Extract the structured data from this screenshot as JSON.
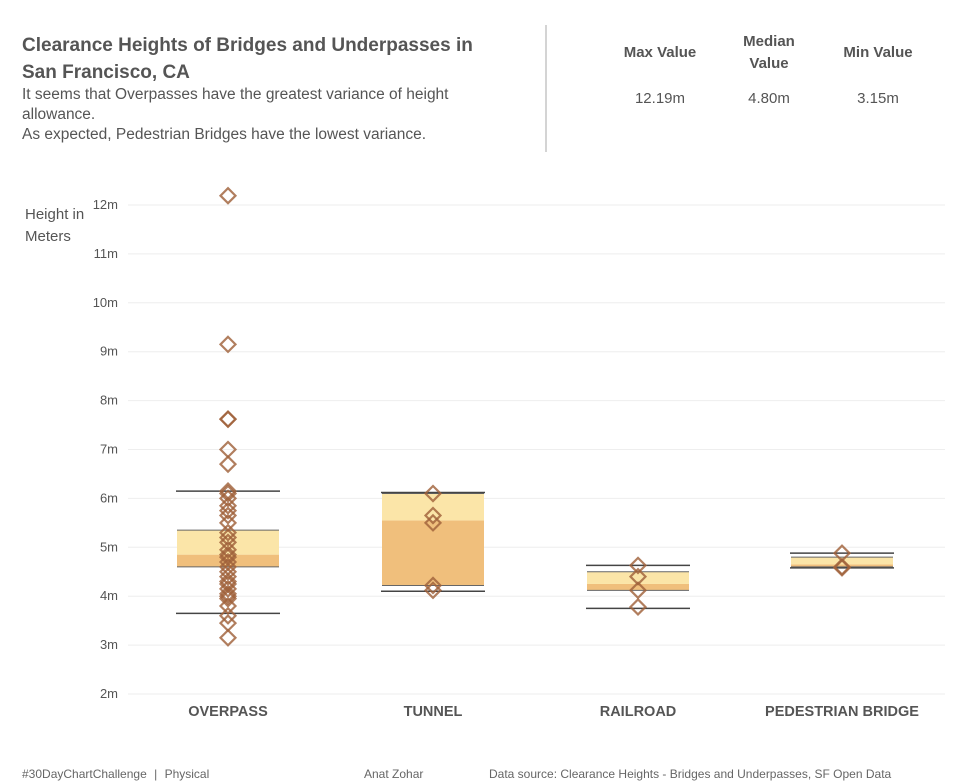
{
  "header": {
    "title": "Clearance Heights of Bridges and Underpasses in San Francisco, CA",
    "subtitle_lines": [
      "It seems that Overpasses have the greatest variance of height allowance.",
      "As expected, Pedestrian Bridges have the lowest variance."
    ]
  },
  "stats": [
    {
      "label": "Max Value",
      "value": "12.19m"
    },
    {
      "label": "Median Value",
      "value": "4.80m"
    },
    {
      "label": "Min Value",
      "value": "3.15m"
    }
  ],
  "footer": {
    "hashtag": "#30DayChartChallenge",
    "separator": "|",
    "theme": "Physical",
    "author": "Anat Zohar",
    "source": "Data source: Clearance Heights - Bridges and Underpasses, SF Open Data"
  },
  "colors": {
    "marker": "#a0613a",
    "box_lower": "#f0bf7c",
    "box_upper": "#fbe5a8",
    "whisker": "#444444",
    "grid": "#eeeeee"
  },
  "chart_data": {
    "type": "box-plot with points",
    "ylabel": "Height in Meters",
    "ylim": [
      2,
      12.4
    ],
    "yticks": [
      2,
      3,
      4,
      5,
      6,
      7,
      8,
      9,
      10,
      11,
      12
    ],
    "ytick_labels": [
      "2m",
      "3m",
      "4m",
      "5m",
      "6m",
      "7m",
      "8m",
      "9m",
      "10m",
      "11m",
      "12m"
    ],
    "categories": [
      "OVERPASS",
      "TUNNEL",
      "RAILROAD",
      "PEDESTRIAN BRIDGE"
    ],
    "boxes": [
      {
        "category": "OVERPASS",
        "whisker_low": 3.65,
        "q1": 4.6,
        "median": 4.85,
        "q3": 5.35,
        "whisker_high": 6.15
      },
      {
        "category": "TUNNEL",
        "whisker_low": 4.1,
        "q1": 4.22,
        "median": 5.55,
        "q3": 6.1,
        "whisker_high": 6.12
      },
      {
        "category": "RAILROAD",
        "whisker_low": 3.75,
        "q1": 4.12,
        "median": 4.25,
        "q3": 4.5,
        "whisker_high": 4.63
      },
      {
        "category": "PEDESTRIAN BRIDGE",
        "whisker_low": 4.58,
        "q1": 4.6,
        "median": 4.65,
        "q3": 4.8,
        "whisker_high": 4.88
      }
    ],
    "points": [
      {
        "category": "OVERPASS",
        "values": [
          12.19,
          9.15,
          7.62,
          7.62,
          7.0,
          6.7,
          6.15,
          6.1,
          6.0,
          5.85,
          5.75,
          5.65,
          5.5,
          5.3,
          5.2,
          5.1,
          4.95,
          4.85,
          4.8,
          4.7,
          4.6,
          4.5,
          4.4,
          4.3,
          4.25,
          4.15,
          4.05,
          4.0,
          3.95,
          3.8,
          3.6,
          3.45,
          3.15
        ]
      },
      {
        "category": "TUNNEL",
        "values": [
          6.1,
          5.65,
          5.5,
          4.22,
          4.12
        ]
      },
      {
        "category": "RAILROAD",
        "values": [
          4.63,
          4.4,
          4.12,
          3.78
        ]
      },
      {
        "category": "PEDESTRIAN BRIDGE",
        "values": [
          4.88,
          4.6,
          4.58
        ]
      }
    ]
  }
}
